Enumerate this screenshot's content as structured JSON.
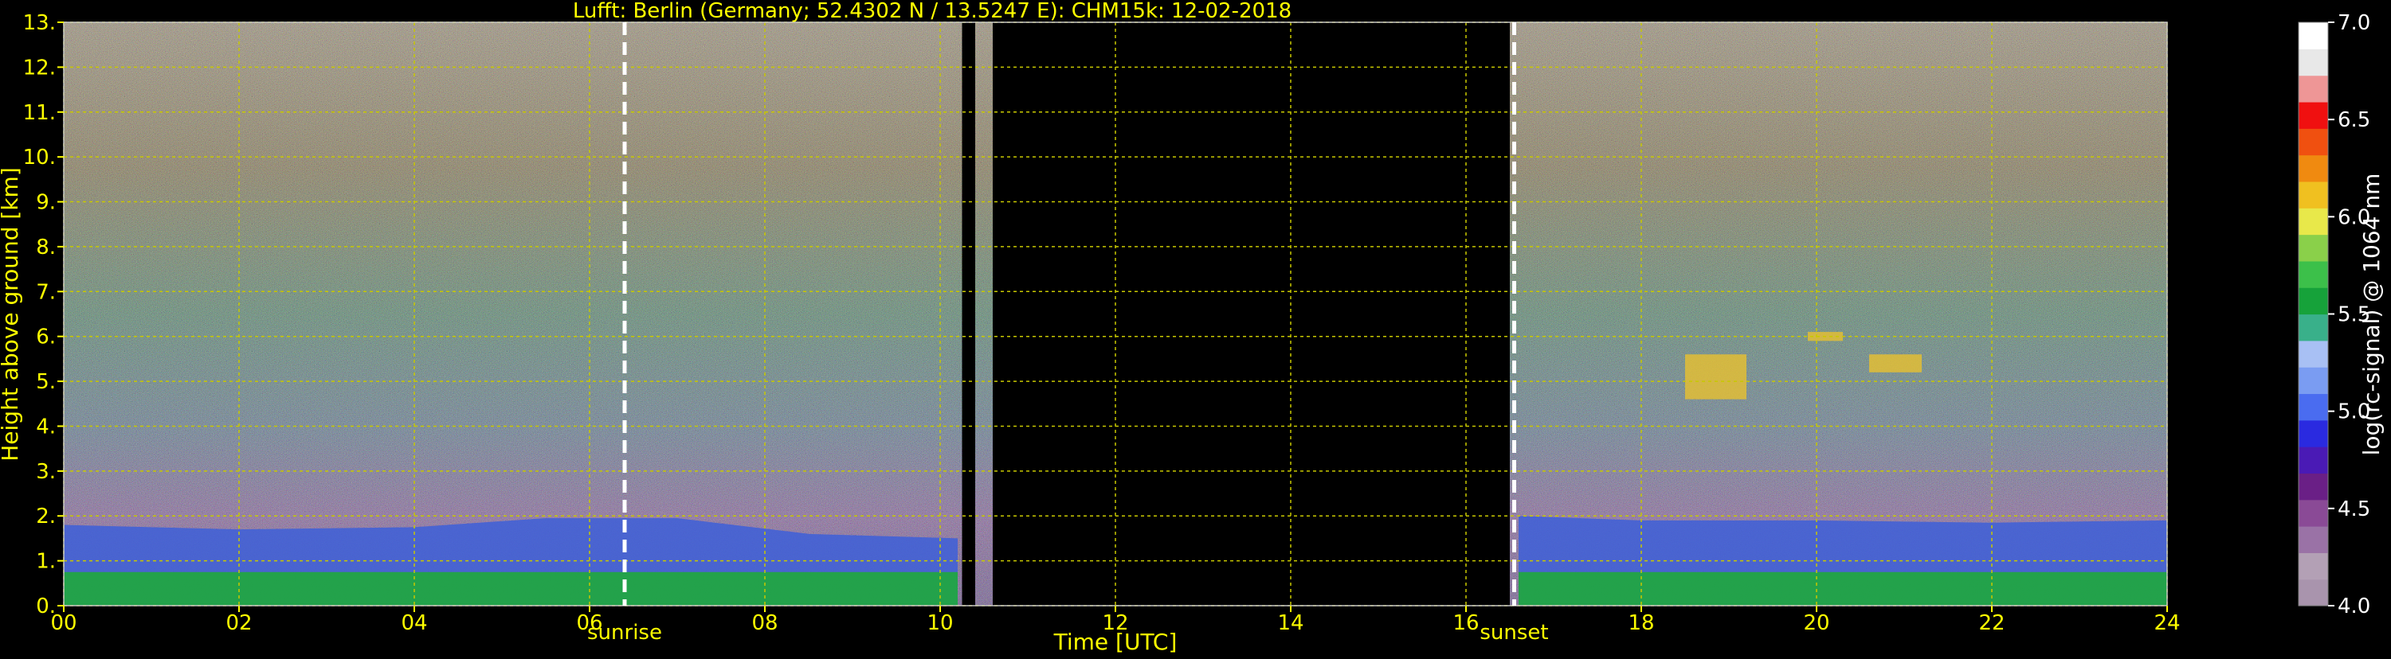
{
  "chart_data": {
    "type": "heatmap",
    "title": "Lufft: Berlin (Germany; 52.4302 N / 13.5247 E):    CHM15k: 12-02-2018",
    "xlabel": "Time [UTC]",
    "ylabel": "Height above ground [km]",
    "xlim": [
      0,
      24
    ],
    "ylim": [
      0,
      13
    ],
    "x_ticks": [
      "00",
      "02",
      "04",
      "06",
      "08",
      "10",
      "12",
      "14",
      "16",
      "18",
      "20",
      "22",
      "24"
    ],
    "y_ticks": [
      "0.",
      "1.",
      "2.",
      "3.",
      "4.",
      "5.",
      "6.",
      "7.",
      "8.",
      "9.",
      "10.",
      "11.",
      "12.",
      "13."
    ],
    "grid": true,
    "data_gaps_utc": [
      [
        10.25,
        10.4
      ],
      [
        10.6,
        16.5
      ]
    ],
    "annotations": [
      {
        "label": "sunrise",
        "x": 6.4
      },
      {
        "label": "sunset",
        "x": 16.55
      }
    ],
    "colorbar": {
      "label": "log(rc-signal) @ 1064 nm",
      "range": [
        4.0,
        7.0
      ],
      "ticks": [
        "4.0",
        "4.5",
        "5.0",
        "5.5",
        "6.0",
        "6.5",
        "7.0"
      ]
    },
    "boundary_layer_top_km": [
      {
        "x": 0.0,
        "y": 1.8
      },
      {
        "x": 2.0,
        "y": 1.7
      },
      {
        "x": 4.0,
        "y": 1.75
      },
      {
        "x": 5.5,
        "y": 1.95
      },
      {
        "x": 7.0,
        "y": 1.95
      },
      {
        "x": 8.5,
        "y": 1.6
      },
      {
        "x": 10.2,
        "y": 1.5
      },
      {
        "x": 16.6,
        "y": 2.0
      },
      {
        "x": 18.0,
        "y": 1.9
      },
      {
        "x": 20.0,
        "y": 1.9
      },
      {
        "x": 22.0,
        "y": 1.85
      },
      {
        "x": 24.0,
        "y": 1.9
      }
    ],
    "elevated_layers": [
      {
        "x_range": [
          18.5,
          19.2
        ],
        "y_range": [
          4.6,
          5.6
        ]
      },
      {
        "x_range": [
          19.9,
          20.3
        ],
        "y_range": [
          5.9,
          6.1
        ]
      },
      {
        "x_range": [
          20.6,
          21.2
        ],
        "y_range": [
          5.2,
          5.6
        ]
      }
    ]
  },
  "colors": {
    "axis_text": "#ffff00",
    "grid": "#c8c800",
    "annotation_line": "#ffffff",
    "colormap": [
      "#a994ad",
      "#b3a0b5",
      "#9a72a6",
      "#8a4a96",
      "#6a1f86",
      "#4a1ab5",
      "#2a2ae0",
      "#4a6cf0",
      "#7a9cf2",
      "#a8c0f4",
      "#39b08a",
      "#16a23a",
      "#3cc04a",
      "#8ad04a",
      "#e8e84a",
      "#f0c020",
      "#f08a10",
      "#f05010",
      "#f01010",
      "#ee9696",
      "#e8e8e8",
      "#ffffff"
    ]
  }
}
